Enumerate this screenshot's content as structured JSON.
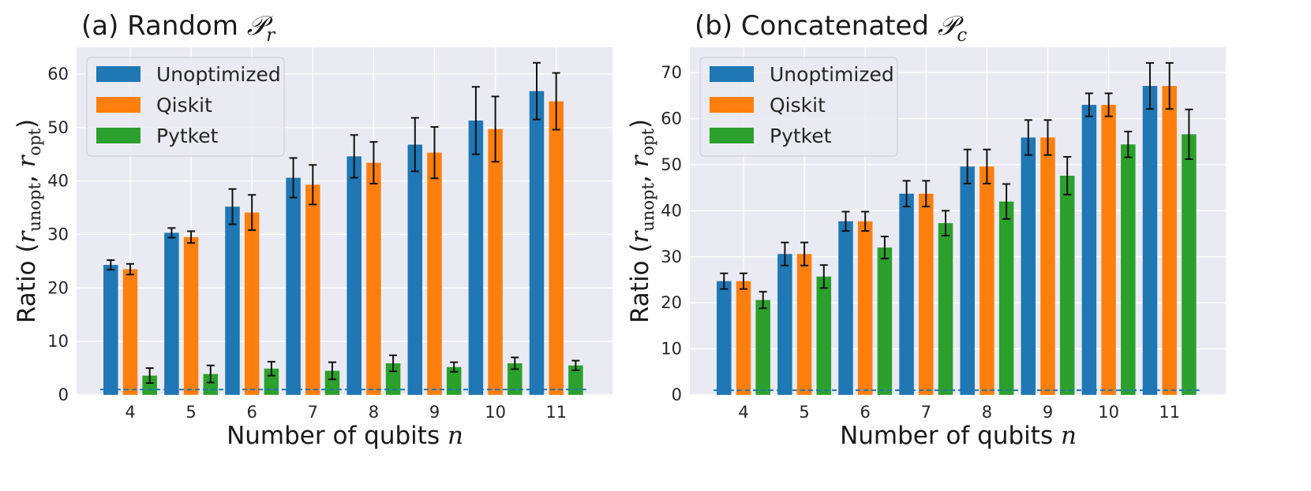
{
  "colors": {
    "plot_bg": "#eaeaf2",
    "grid": "#ffffff",
    "unoptimized": "#1f77b4",
    "qiskit": "#ff7f0e",
    "pytket": "#2ca02c",
    "baseline": "#1f77b4",
    "errorbar": "#111111"
  },
  "chart_data": [
    {
      "type": "bar",
      "panel": "a",
      "title_prefix": "(a) Random ",
      "title_symbol": "𝒫",
      "title_sub": "r",
      "xlabel_text": "Number of qubits ",
      "xlabel_var": "n",
      "ylabel_text": "Ratio (",
      "ylabel_var1": "r",
      "ylabel_sub1": "unopt",
      "ylabel_sep": ", ",
      "ylabel_var2": "r",
      "ylabel_sub2": "opt",
      "ylabel_close": ")",
      "categories": [
        "4",
        "5",
        "6",
        "7",
        "8",
        "9",
        "10",
        "11"
      ],
      "ylim": [
        0,
        65
      ],
      "yticks": [
        0,
        10,
        20,
        30,
        40,
        50,
        60
      ],
      "grid": true,
      "legend_position": "upper-left",
      "baseline": 1,
      "series": [
        {
          "name": "Unoptimized",
          "values": [
            24.3,
            30.3,
            35.2,
            40.6,
            44.6,
            46.8,
            51.3,
            56.8
          ],
          "errors": [
            0.9,
            0.9,
            3.3,
            3.7,
            4.0,
            5.0,
            6.3,
            5.3
          ]
        },
        {
          "name": "Qiskit",
          "values": [
            23.5,
            29.5,
            34.1,
            39.3,
            43.4,
            45.3,
            49.7,
            54.9
          ],
          "errors": [
            1.0,
            1.1,
            3.3,
            3.7,
            3.9,
            4.8,
            6.1,
            5.3
          ]
        },
        {
          "name": "Pytket",
          "values": [
            3.6,
            3.9,
            4.9,
            4.5,
            5.9,
            5.2,
            5.9,
            5.5
          ],
          "errors": [
            1.4,
            1.6,
            1.3,
            1.6,
            1.5,
            0.9,
            1.1,
            0.9
          ]
        }
      ]
    },
    {
      "type": "bar",
      "panel": "b",
      "title_prefix": "(b) Concatenated ",
      "title_symbol": "𝒫",
      "title_sub": "c",
      "xlabel_text": "Number of qubits ",
      "xlabel_var": "n",
      "ylabel_text": "Ratio (",
      "ylabel_var1": "r",
      "ylabel_sub1": "unopt",
      "ylabel_sep": ", ",
      "ylabel_var2": "r",
      "ylabel_sub2": "opt",
      "ylabel_close": ")",
      "categories": [
        "4",
        "5",
        "6",
        "7",
        "8",
        "9",
        "10",
        "11"
      ],
      "ylim": [
        0,
        75.5
      ],
      "yticks": [
        0,
        10,
        20,
        30,
        40,
        50,
        60,
        70
      ],
      "grid": true,
      "legend_position": "upper-left",
      "baseline": 1,
      "series": [
        {
          "name": "Unoptimized",
          "values": [
            24.7,
            30.6,
            37.7,
            43.7,
            49.6,
            55.9,
            63.0,
            67.1
          ],
          "errors": [
            1.7,
            2.5,
            2.1,
            2.8,
            3.7,
            3.8,
            2.5,
            5.0
          ]
        },
        {
          "name": "Qiskit",
          "values": [
            24.7,
            30.6,
            37.7,
            43.7,
            49.6,
            55.9,
            63.0,
            67.1
          ],
          "errors": [
            1.7,
            2.5,
            2.1,
            2.8,
            3.7,
            3.8,
            2.5,
            5.0
          ]
        },
        {
          "name": "Pytket",
          "values": [
            20.6,
            25.7,
            32.0,
            37.3,
            42.0,
            47.6,
            54.4,
            56.6
          ],
          "errors": [
            1.8,
            2.5,
            2.4,
            2.7,
            3.8,
            4.1,
            2.8,
            5.4
          ]
        }
      ]
    }
  ]
}
